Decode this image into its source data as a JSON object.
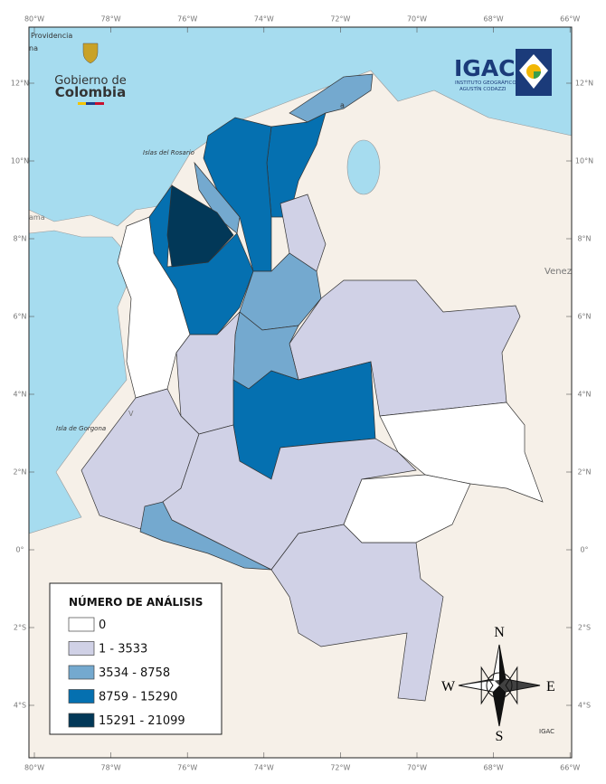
{
  "header": {
    "government": {
      "line1": "Gobierno de",
      "line2": "Colombia"
    },
    "igac": {
      "name": "IGAC",
      "line1": "INSTITUTO GEOGRÁFICO",
      "line2": "AGUSTÍN CODAZZI"
    }
  },
  "map": {
    "longitude_labels": [
      "80°W",
      "78°W",
      "76°W",
      "74°W",
      "72°W",
      "70°W",
      "68°W",
      "66°W"
    ],
    "latitude_labels": [
      "12°N",
      "10°N",
      "8°N",
      "6°N",
      "4°N",
      "2°N",
      "0°",
      "2°S",
      "4°S"
    ],
    "place_labels": [
      "Providencia",
      "na",
      "Islas del Rosario",
      "ama",
      "Isla de Gorgona",
      "V",
      "a",
      "Venez"
    ],
    "credit": "IGAC"
  },
  "legend": {
    "title": "NÚMERO DE ANÁLISIS",
    "items": [
      {
        "label": "0",
        "color": "#ffffff"
      },
      {
        "label": "1 - 3533",
        "color": "#d0d1e6"
      },
      {
        "label": "3534 - 8758",
        "color": "#74a9cf"
      },
      {
        "label": "8759 - 15290",
        "color": "#0570b0"
      },
      {
        "label": "15291 - 21099",
        "color": "#023858"
      }
    ]
  },
  "compass": {
    "north": "N",
    "south": "S",
    "east": "E",
    "west": "W"
  }
}
